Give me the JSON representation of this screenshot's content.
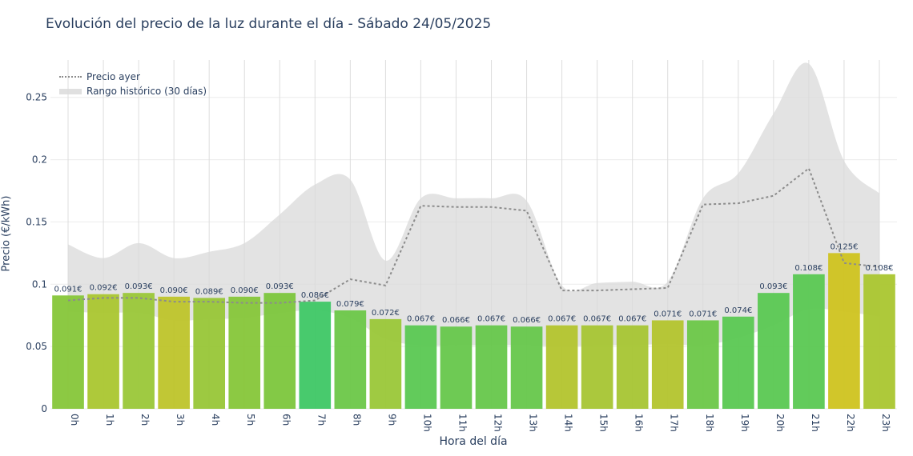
{
  "chart_data": {
    "type": "bar",
    "title": "Evolución del precio de la luz durante el día - Sábado 24/05/2025",
    "xlabel": "Hora del día",
    "ylabel": "Precio (€/kWh)",
    "ylim": [
      0,
      0.28
    ],
    "yticks": [
      0,
      0.05,
      0.1,
      0.15,
      0.2,
      0.25
    ],
    "ytick_labels": [
      "0",
      "0.05",
      "0.1",
      "0.15",
      "0.2",
      "0.25"
    ],
    "grid": true,
    "legend_position": "top-left",
    "categories": [
      "0h",
      "1h",
      "2h",
      "3h",
      "4h",
      "5h",
      "6h",
      "7h",
      "8h",
      "9h",
      "10h",
      "11h",
      "12h",
      "13h",
      "14h",
      "15h",
      "16h",
      "17h",
      "18h",
      "19h",
      "20h",
      "21h",
      "22h",
      "23h"
    ],
    "values": [
      0.091,
      0.092,
      0.093,
      0.09,
      0.089,
      0.09,
      0.093,
      0.086,
      0.079,
      0.072,
      0.067,
      0.066,
      0.067,
      0.066,
      0.067,
      0.067,
      0.067,
      0.071,
      0.071,
      0.074,
      0.093,
      0.108,
      0.125,
      0.108
    ],
    "value_labels": [
      "0.091€",
      "0.092€",
      "0.093€",
      "0.090€",
      "0.089€",
      "0.090€",
      "0.093€",
      "0.086€",
      "0.079€",
      "0.072€",
      "0.067€",
      "0.066€",
      "0.067€",
      "0.066€",
      "0.067€",
      "0.067€",
      "0.067€",
      "0.071€",
      "0.071€",
      "0.074€",
      "0.093€",
      "0.108€",
      "0.125€",
      "0.108€"
    ],
    "bar_colors": [
      "#86c639",
      "#aac62f",
      "#9ac738",
      "#bec42a",
      "#98c637",
      "#86c639",
      "#7cc63c",
      "#3ec765",
      "#6cc748",
      "#9ac738",
      "#5ac852",
      "#66c74b",
      "#66c74b",
      "#66c74b",
      "#b3c42d",
      "#a6c533",
      "#a6c533",
      "#b3c42d",
      "#6cc748",
      "#5ac852",
      "#5ac852",
      "#5ac852",
      "#cfc31f",
      "#aac62f"
    ],
    "series": [
      {
        "name": "Precio ayer",
        "style": "dotted-line",
        "color": "#8c8c8c",
        "values": [
          0.087,
          0.089,
          0.089,
          0.086,
          0.086,
          0.085,
          0.085,
          0.087,
          0.104,
          0.099,
          0.163,
          0.162,
          0.162,
          0.159,
          0.095,
          0.095,
          0.096,
          0.097,
          0.164,
          0.165,
          0.171,
          0.193,
          0.117,
          0.114
        ]
      },
      {
        "name": "Rango histórico (30 días)",
        "style": "band",
        "color": "#dadada",
        "upper": [
          0.132,
          0.121,
          0.133,
          0.121,
          0.126,
          0.133,
          0.156,
          0.18,
          0.184,
          0.119,
          0.169,
          0.169,
          0.169,
          0.167,
          0.099,
          0.101,
          0.102,
          0.102,
          0.169,
          0.189,
          0.237,
          0.277,
          0.199,
          0.173
        ],
        "lower": [
          0.078,
          0.077,
          0.077,
          0.071,
          0.072,
          0.073,
          0.077,
          0.079,
          0.073,
          0.056,
          0.051,
          0.051,
          0.051,
          0.051,
          0.05,
          0.051,
          0.051,
          0.052,
          0.051,
          0.057,
          0.067,
          0.08,
          0.078,
          0.074
        ]
      }
    ]
  }
}
